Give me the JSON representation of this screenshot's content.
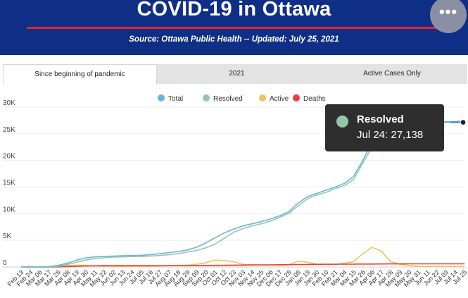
{
  "header": {
    "title": "COVID-19 in Ottawa",
    "subtitle": "Source:  Ottawa Public Health -- Updated:  July 25, 2021",
    "menu_glyph": "•••"
  },
  "tabs": [
    {
      "label": "Since beginning of pandemic",
      "active": true
    },
    {
      "label": "2021",
      "active": false
    },
    {
      "label": "Active Cases Only",
      "active": false
    }
  ],
  "tooltip": {
    "series": "Resolved",
    "date": "Jul 24",
    "value": "27,138",
    "text": "Jul 24: 27,138"
  },
  "chart_data": {
    "type": "line",
    "title": "",
    "xlabel": "",
    "ylabel": "",
    "ylim": [
      0,
      30000
    ],
    "yticks": [
      0,
      5000,
      10000,
      15000,
      20000,
      25000,
      30000
    ],
    "ytick_labels": [
      "0",
      "5K",
      "10K",
      "15K",
      "20K",
      "25K",
      "30K"
    ],
    "grid": true,
    "legend_position": "top-center",
    "x": [
      "Feb 13",
      "Feb 24",
      "Mar 06",
      "Mar 17",
      "Mar 28",
      "Apr 08",
      "Apr 19",
      "Apr 30",
      "May 11",
      "May 22",
      "Jun 02",
      "Jun 13",
      "Jun 24",
      "Jul 05",
      "Jul 16",
      "Jul 27",
      "Aug 07",
      "Aug 18",
      "Aug 29",
      "Sep 09",
      "Sep 20",
      "Oct 01",
      "Oct 12",
      "Oct 23",
      "Nov 03",
      "Nov 14",
      "Nov 25",
      "Dec 06",
      "Dec 17",
      "Dec 28",
      "Jan 08",
      "Jan 19",
      "Jan 30",
      "Feb 10",
      "Feb 21",
      "Mar 04",
      "Mar 15",
      "Mar 26",
      "Apr 06",
      "Apr 17",
      "Apr 28",
      "May 09",
      "May 20",
      "May 31",
      "Jun 11",
      "Jun 22",
      "Jul 03",
      "Jul 14",
      "Jul 25"
    ],
    "series": [
      {
        "name": "Total",
        "color": "#6ab4dc",
        "values": [
          0,
          0,
          0,
          50,
          300,
          700,
          1300,
          1700,
          1900,
          2000,
          2050,
          2100,
          2150,
          2200,
          2300,
          2500,
          2700,
          2900,
          3200,
          3700,
          4500,
          5500,
          6400,
          7100,
          7700,
          8100,
          8500,
          9000,
          9600,
          10400,
          12000,
          13200,
          13800,
          14400,
          15000,
          15700,
          17000,
          20000,
          23500,
          26000,
          26700,
          27000,
          27100,
          27150,
          27180,
          27200,
          27250,
          27300,
          27400
        ]
      },
      {
        "name": "Resolved",
        "color": "#94c7a9",
        "values": [
          0,
          0,
          0,
          20,
          150,
          450,
          900,
          1300,
          1600,
          1750,
          1850,
          1900,
          1950,
          2000,
          2050,
          2150,
          2300,
          2500,
          2800,
          3100,
          3600,
          4300,
          5400,
          6500,
          7200,
          7700,
          8100,
          8600,
          9300,
          10100,
          11500,
          12800,
          13500,
          14000,
          14700,
          15300,
          16400,
          19500,
          22500,
          25000,
          26300,
          26900,
          27000,
          27050,
          27080,
          27100,
          27110,
          27120,
          27138
        ]
      },
      {
        "name": "Active",
        "color": "#efc25a",
        "values": [
          0,
          0,
          0,
          30,
          150,
          250,
          350,
          300,
          200,
          150,
          100,
          100,
          100,
          100,
          150,
          200,
          250,
          300,
          350,
          500,
          800,
          1300,
          1200,
          1000,
          500,
          400,
          400,
          400,
          350,
          400,
          1100,
          900,
          500,
          450,
          500,
          700,
          1000,
          2500,
          3700,
          3000,
          1000,
          500,
          300,
          150,
          100,
          100,
          80,
          90,
          80
        ]
      },
      {
        "name": "Deaths",
        "color": "#e0413a",
        "values": [
          0,
          0,
          0,
          0,
          20,
          80,
          150,
          200,
          230,
          250,
          260,
          265,
          268,
          270,
          270,
          270,
          270,
          275,
          280,
          285,
          290,
          300,
          320,
          340,
          360,
          380,
          390,
          400,
          420,
          440,
          460,
          480,
          500,
          510,
          520,
          530,
          540,
          550,
          560,
          570,
          580,
          585,
          590,
          590,
          590,
          591,
          592,
          592,
          593
        ]
      }
    ]
  }
}
